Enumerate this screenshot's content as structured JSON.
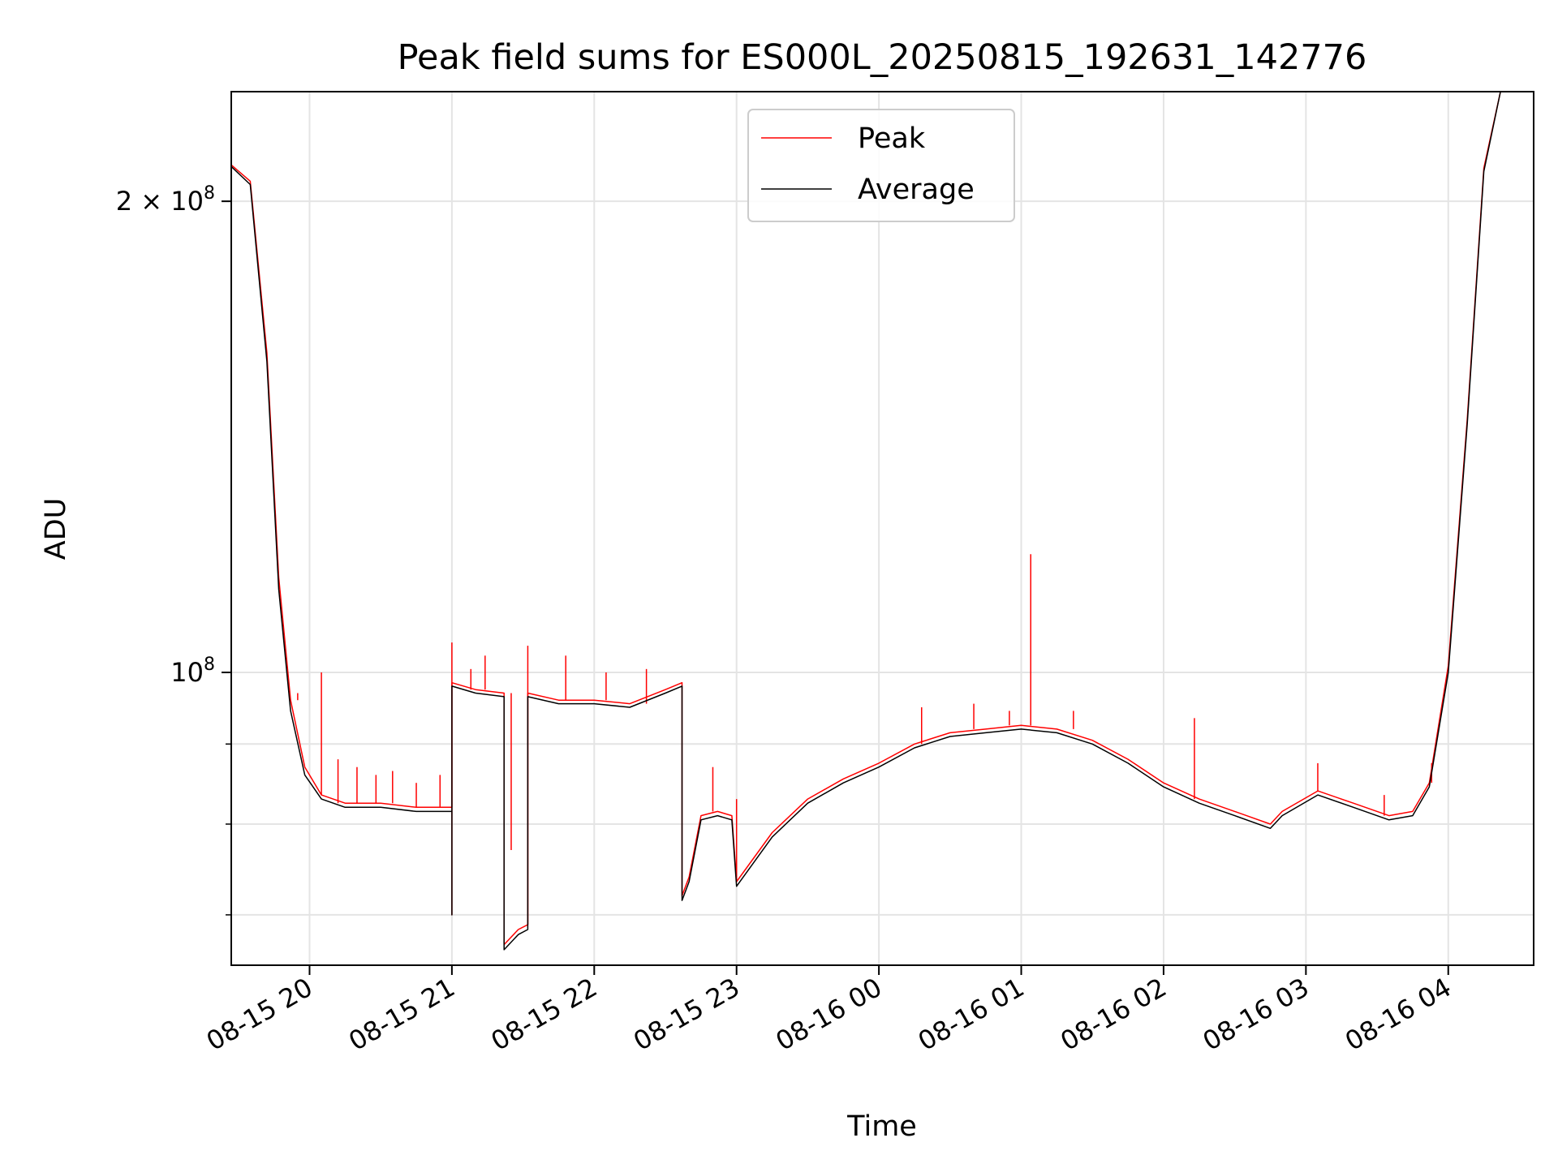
{
  "chart_data": {
    "type": "line",
    "title": "Peak field sums for ES000L_20250815_192631_142776",
    "xlabel": "Time",
    "ylabel": "ADU",
    "y_scale": "log",
    "ylim": [
      65000000,
      235000000
    ],
    "xlim": [
      "2025-08-15 19:27",
      "2025-08-16 04:36"
    ],
    "grid": true,
    "legend_position": "top-center",
    "x_ticks": [
      {
        "t": "2025-08-15 20:00",
        "label": "08-15 20"
      },
      {
        "t": "2025-08-15 21:00",
        "label": "08-15 21"
      },
      {
        "t": "2025-08-15 22:00",
        "label": "08-15 22"
      },
      {
        "t": "2025-08-15 23:00",
        "label": "08-15 23"
      },
      {
        "t": "2025-08-16 00:00",
        "label": "08-16 00"
      },
      {
        "t": "2025-08-16 01:00",
        "label": "08-16 01"
      },
      {
        "t": "2025-08-16 02:00",
        "label": "08-16 02"
      },
      {
        "t": "2025-08-16 03:00",
        "label": "08-16 03"
      },
      {
        "t": "2025-08-16 04:00",
        "label": "08-16 04"
      }
    ],
    "y_major_ticks": [
      {
        "v": 100000000,
        "base": "10",
        "exp": "8",
        "coef": ""
      },
      {
        "v": 200000000,
        "base": "10",
        "exp": "8",
        "coef": "2 × "
      }
    ],
    "y_minor_ticks": [
      70000000,
      80000000,
      90000000
    ],
    "series": [
      {
        "name": "Peak",
        "color": "#ff0000",
        "points": [
          [
            "2025-08-15 19:27",
            211000000
          ],
          [
            "2025-08-15 19:35",
            206000000
          ],
          [
            "2025-08-15 19:42",
            160000000
          ],
          [
            "2025-08-15 19:47",
            115000000
          ],
          [
            "2025-08-15 19:52",
            96000000
          ],
          [
            "2025-08-15 19:58",
            87000000
          ],
          [
            "2025-08-15 20:05",
            83500000
          ],
          [
            "2025-08-15 20:15",
            82500000
          ],
          [
            "2025-08-15 20:30",
            82500000
          ],
          [
            "2025-08-15 20:45",
            82000000
          ],
          [
            "2025-08-15 21:00",
            82000000
          ],
          [
            "2025-08-15 21:00",
            70000000
          ],
          [
            "2025-08-15 21:00",
            98500000
          ],
          [
            "2025-08-15 21:10",
            97500000
          ],
          [
            "2025-08-15 21:22",
            97000000
          ],
          [
            "2025-08-15 21:22",
            67000000
          ],
          [
            "2025-08-15 21:28",
            68500000
          ],
          [
            "2025-08-15 21:32",
            69000000
          ],
          [
            "2025-08-15 21:32",
            97000000
          ],
          [
            "2025-08-15 21:45",
            96000000
          ],
          [
            "2025-08-15 22:00",
            96000000
          ],
          [
            "2025-08-15 22:15",
            95500000
          ],
          [
            "2025-08-15 22:30",
            97500000
          ],
          [
            "2025-08-15 22:37",
            98500000
          ],
          [
            "2025-08-15 22:37",
            72000000
          ],
          [
            "2025-08-15 22:40",
            74000000
          ],
          [
            "2025-08-15 22:45",
            81000000
          ],
          [
            "2025-08-15 22:52",
            81500000
          ],
          [
            "2025-08-15 22:58",
            81000000
          ],
          [
            "2025-08-15 23:00",
            73500000
          ],
          [
            "2025-08-15 23:15",
            79000000
          ],
          [
            "2025-08-15 23:30",
            83000000
          ],
          [
            "2025-08-15 23:45",
            85500000
          ],
          [
            "2025-08-16 00:00",
            87500000
          ],
          [
            "2025-08-16 00:15",
            90000000
          ],
          [
            "2025-08-16 00:30",
            91500000
          ],
          [
            "2025-08-16 00:45",
            92000000
          ],
          [
            "2025-08-16 01:00",
            92500000
          ],
          [
            "2025-08-16 01:15",
            92000000
          ],
          [
            "2025-08-16 01:30",
            90500000
          ],
          [
            "2025-08-16 01:45",
            88000000
          ],
          [
            "2025-08-16 02:00",
            85000000
          ],
          [
            "2025-08-16 02:15",
            83000000
          ],
          [
            "2025-08-16 02:30",
            81500000
          ],
          [
            "2025-08-16 02:45",
            80000000
          ],
          [
            "2025-08-16 02:50",
            81500000
          ],
          [
            "2025-08-16 03:05",
            84000000
          ],
          [
            "2025-08-16 03:20",
            82500000
          ],
          [
            "2025-08-16 03:35",
            81000000
          ],
          [
            "2025-08-16 03:45",
            81500000
          ],
          [
            "2025-08-16 03:52",
            85000000
          ],
          [
            "2025-08-16 04:00",
            101000000
          ],
          [
            "2025-08-16 04:08",
            145000000
          ],
          [
            "2025-08-16 04:15",
            210000000
          ],
          [
            "2025-08-16 04:22",
            235000000
          ],
          [
            "2025-08-16 04:36",
            235000000
          ]
        ],
        "spikes": [
          [
            "2025-08-15 19:55",
            97000000
          ],
          [
            "2025-08-15 20:05",
            100000000
          ],
          [
            "2025-08-15 20:12",
            88000000
          ],
          [
            "2025-08-15 20:20",
            87000000
          ],
          [
            "2025-08-15 20:28",
            86000000
          ],
          [
            "2025-08-15 20:35",
            86500000
          ],
          [
            "2025-08-15 20:45",
            85000000
          ],
          [
            "2025-08-15 20:55",
            86000000
          ],
          [
            "2025-08-15 21:00",
            104500000
          ],
          [
            "2025-08-15 21:08",
            100500000
          ],
          [
            "2025-08-15 21:14",
            102500000
          ],
          [
            "2025-08-15 21:25",
            77000000
          ],
          [
            "2025-08-15 21:32",
            104000000
          ],
          [
            "2025-08-15 21:48",
            102500000
          ],
          [
            "2025-08-15 22:05",
            100000000
          ],
          [
            "2025-08-15 22:22",
            100500000
          ],
          [
            "2025-08-15 22:50",
            87000000
          ],
          [
            "2025-08-15 23:00",
            83000000
          ],
          [
            "2025-08-16 00:18",
            95000000
          ],
          [
            "2025-08-16 00:40",
            95500000
          ],
          [
            "2025-08-16 00:55",
            94500000
          ],
          [
            "2025-08-16 01:04",
            119000000
          ],
          [
            "2025-08-16 01:22",
            94500000
          ],
          [
            "2025-08-16 02:13",
            93500000
          ],
          [
            "2025-08-16 03:05",
            87500000
          ],
          [
            "2025-08-16 03:33",
            83500000
          ],
          [
            "2025-08-16 03:53",
            87500000
          ]
        ]
      },
      {
        "name": "Average",
        "color": "#000000",
        "points": [
          [
            "2025-08-15 19:27",
            210500000
          ],
          [
            "2025-08-15 19:35",
            205000000
          ],
          [
            "2025-08-15 19:42",
            158000000
          ],
          [
            "2025-08-15 19:47",
            113000000
          ],
          [
            "2025-08-15 19:52",
            94500000
          ],
          [
            "2025-08-15 19:58",
            86000000
          ],
          [
            "2025-08-15 20:05",
            83000000
          ],
          [
            "2025-08-15 20:15",
            82000000
          ],
          [
            "2025-08-15 20:30",
            82000000
          ],
          [
            "2025-08-15 20:45",
            81500000
          ],
          [
            "2025-08-15 21:00",
            81500000
          ],
          [
            "2025-08-15 21:00",
            70000000
          ],
          [
            "2025-08-15 21:00",
            98000000
          ],
          [
            "2025-08-15 21:10",
            97000000
          ],
          [
            "2025-08-15 21:22",
            96500000
          ],
          [
            "2025-08-15 21:22",
            66500000
          ],
          [
            "2025-08-15 21:28",
            68000000
          ],
          [
            "2025-08-15 21:32",
            68500000
          ],
          [
            "2025-08-15 21:32",
            96500000
          ],
          [
            "2025-08-15 21:45",
            95500000
          ],
          [
            "2025-08-15 22:00",
            95500000
          ],
          [
            "2025-08-15 22:15",
            95000000
          ],
          [
            "2025-08-15 22:30",
            97000000
          ],
          [
            "2025-08-15 22:37",
            98000000
          ],
          [
            "2025-08-15 22:37",
            71500000
          ],
          [
            "2025-08-15 22:40",
            73500000
          ],
          [
            "2025-08-15 22:45",
            80500000
          ],
          [
            "2025-08-15 22:52",
            81000000
          ],
          [
            "2025-08-15 22:58",
            80500000
          ],
          [
            "2025-08-15 23:00",
            73000000
          ],
          [
            "2025-08-15 23:15",
            78500000
          ],
          [
            "2025-08-15 23:30",
            82500000
          ],
          [
            "2025-08-15 23:45",
            85000000
          ],
          [
            "2025-08-16 00:00",
            87000000
          ],
          [
            "2025-08-16 00:15",
            89500000
          ],
          [
            "2025-08-16 00:30",
            91000000
          ],
          [
            "2025-08-16 00:45",
            91500000
          ],
          [
            "2025-08-16 01:00",
            92000000
          ],
          [
            "2025-08-16 01:15",
            91500000
          ],
          [
            "2025-08-16 01:30",
            90000000
          ],
          [
            "2025-08-16 01:45",
            87500000
          ],
          [
            "2025-08-16 02:00",
            84500000
          ],
          [
            "2025-08-16 02:15",
            82500000
          ],
          [
            "2025-08-16 02:30",
            81000000
          ],
          [
            "2025-08-16 02:45",
            79500000
          ],
          [
            "2025-08-16 02:50",
            81000000
          ],
          [
            "2025-08-16 03:05",
            83500000
          ],
          [
            "2025-08-16 03:20",
            82000000
          ],
          [
            "2025-08-16 03:35",
            80500000
          ],
          [
            "2025-08-16 03:45",
            81000000
          ],
          [
            "2025-08-16 03:52",
            84500000
          ],
          [
            "2025-08-16 04:00",
            100000000
          ],
          [
            "2025-08-16 04:08",
            144000000
          ],
          [
            "2025-08-16 04:15",
            209000000
          ],
          [
            "2025-08-16 04:22",
            235000000
          ],
          [
            "2025-08-16 04:36",
            235000000
          ]
        ]
      }
    ]
  }
}
